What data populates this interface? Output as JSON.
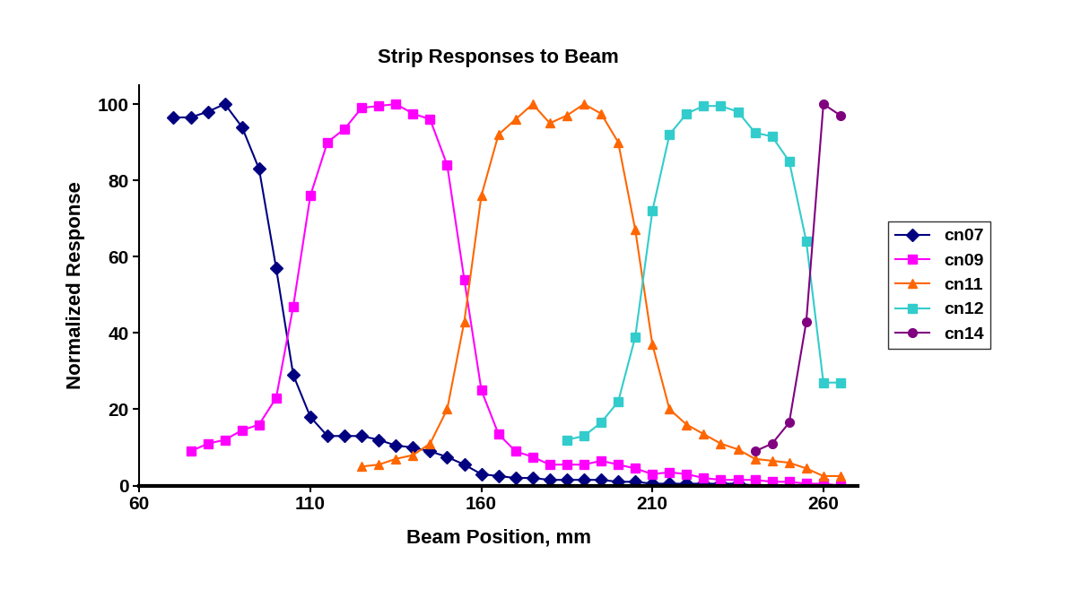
{
  "chart_data": {
    "type": "line",
    "title": "Strip Responses to Beam",
    "x_label": "Beam Position, mm",
    "y_label": "Normalized Response",
    "xlim": [
      60,
      270
    ],
    "xticks": [
      60,
      110,
      160,
      210,
      260
    ],
    "ylim": [
      0,
      105
    ],
    "yticks": [
      0,
      20,
      40,
      60,
      80,
      100
    ],
    "grid": false,
    "legend": "right",
    "series": [
      {
        "name": "cn07",
        "color": "#000080",
        "marker": "diamond",
        "line_style": "solid",
        "x": [
          70,
          75,
          80,
          85,
          90,
          95,
          100,
          105,
          110,
          115,
          120,
          125,
          130,
          135,
          140,
          145,
          150,
          155,
          160,
          165,
          170,
          175,
          180,
          185,
          190,
          195,
          200,
          205,
          210,
          215,
          220,
          225,
          230,
          235,
          240,
          245,
          250,
          255,
          260,
          265
        ],
        "values": [
          96.5,
          96.5,
          98,
          100,
          94,
          83,
          57,
          29,
          18,
          13,
          13,
          13,
          12,
          10.5,
          10,
          9,
          7.5,
          5.5,
          3,
          2.5,
          2,
          2,
          1.5,
          1.5,
          1.5,
          1.5,
          1,
          1,
          0.5,
          0.5,
          0.5,
          0.5,
          0.5,
          0.5,
          0,
          0,
          0,
          0,
          0,
          0
        ]
      },
      {
        "name": "cn09",
        "color": "#ff00ff",
        "marker": "square",
        "line_style": "solid",
        "x": [
          75,
          80,
          85,
          90,
          95,
          100,
          105,
          110,
          115,
          120,
          125,
          130,
          135,
          140,
          145,
          150,
          155,
          160,
          165,
          170,
          175,
          180,
          185,
          190,
          195,
          200,
          205,
          210,
          215,
          220,
          225,
          230,
          235,
          240,
          245,
          250,
          255,
          260,
          265
        ],
        "values": [
          9,
          11,
          12,
          14.5,
          16,
          23,
          47,
          76,
          90,
          93.5,
          99,
          99.5,
          100,
          97.5,
          96,
          84,
          54,
          25,
          13.5,
          9,
          7.5,
          5.5,
          5.5,
          5.5,
          6.5,
          5.5,
          4.5,
          3,
          3.5,
          3,
          2,
          1.5,
          1.5,
          1.5,
          1,
          1,
          0.5,
          0.5,
          0
        ]
      },
      {
        "name": "cn11",
        "color": "#ff6600",
        "marker": "triangle",
        "line_style": "solid",
        "x": [
          125,
          130,
          135,
          140,
          145,
          150,
          155,
          160,
          165,
          170,
          175,
          180,
          185,
          190,
          195,
          200,
          205,
          210,
          215,
          220,
          225,
          230,
          235,
          240,
          245,
          250,
          255,
          260,
          265
        ],
        "values": [
          5,
          5.5,
          7,
          8,
          11,
          20,
          43,
          76,
          92,
          96,
          100,
          95,
          97,
          100,
          97.5,
          90,
          67,
          37,
          20,
          16,
          13.5,
          11,
          9.5,
          7,
          6.5,
          6,
          4.5,
          2.5,
          2.5
        ]
      },
      {
        "name": "cn12",
        "color": "#33cccc",
        "marker": "square",
        "line_style": "solid",
        "x": [
          185,
          190,
          195,
          200,
          205,
          210,
          215,
          220,
          225,
          230,
          235,
          240,
          245,
          250,
          255,
          260,
          265
        ],
        "values": [
          12,
          13,
          16.5,
          22,
          39,
          72,
          92,
          97.5,
          99.5,
          99.5,
          98,
          92.5,
          91.5,
          85,
          64,
          27,
          27
        ]
      },
      {
        "name": "cn14",
        "color": "#800080",
        "marker": "circle",
        "line_style": "solid",
        "x": [
          240,
          245,
          250,
          255,
          260,
          265
        ],
        "values": [
          9,
          11,
          16.5,
          43,
          100,
          97
        ]
      }
    ]
  }
}
